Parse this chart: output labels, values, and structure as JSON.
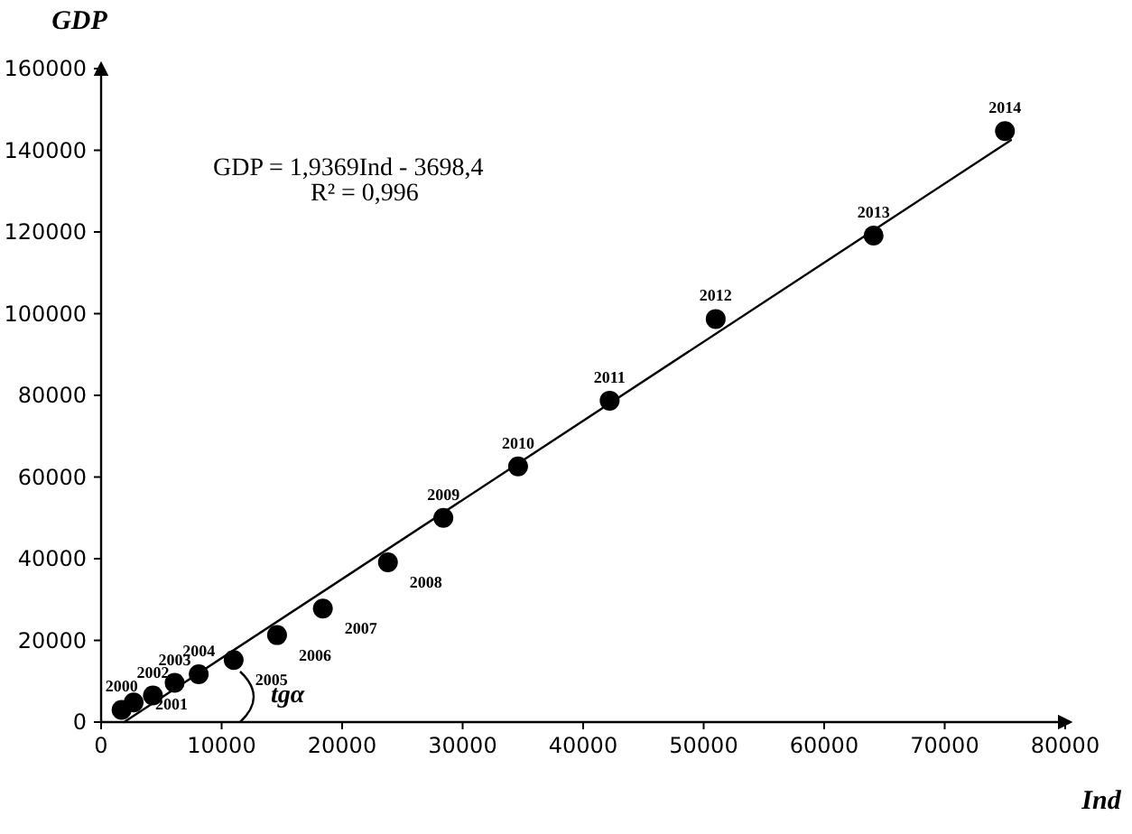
{
  "chart_data": {
    "type": "scatter",
    "xlabel": "Ind",
    "ylabel": "GDP",
    "xlim": [
      0,
      80000
    ],
    "ylim": [
      0,
      160000
    ],
    "xticks": [
      0,
      10000,
      20000,
      30000,
      40000,
      50000,
      60000,
      70000,
      80000
    ],
    "yticks": [
      0,
      20000,
      40000,
      60000,
      80000,
      100000,
      120000,
      140000,
      160000
    ],
    "grid": false,
    "series": [
      {
        "marker": "circle",
        "color": "#000000",
        "x": [
          1700,
          2700,
          4300,
          6100,
          8100,
          11000,
          14600,
          18400,
          23800,
          28400,
          34600,
          42200,
          51000,
          64100,
          75000
        ],
        "values": [
          3000,
          4800,
          6500,
          9600,
          11700,
          15200,
          21300,
          27800,
          39100,
          50000,
          62600,
          78700,
          98700,
          119100,
          144700
        ]
      },
      {
        "type": "line",
        "color": "#000000",
        "x": [
          1910,
          75500
        ],
        "values": [
          0,
          142500
        ]
      }
    ],
    "annotations": [
      "GDP = 1,9369Ind - 3698,4",
      "R² = 0,996",
      "tgα",
      {
        "text": "2000",
        "x": 1700,
        "y": 3000
      },
      {
        "text": "2001",
        "x": 2700,
        "y": 4800
      },
      {
        "text": "2002",
        "x": 4300,
        "y": 6500
      },
      {
        "text": "2003",
        "x": 6100,
        "y": 9600
      },
      {
        "text": "2004",
        "x": 8100,
        "y": 11700
      },
      {
        "text": "2005",
        "x": 11000,
        "y": 15200
      },
      {
        "text": "2006",
        "x": 14600,
        "y": 21300
      },
      {
        "text": "2007",
        "x": 18400,
        "y": 27800
      },
      {
        "text": "2008",
        "x": 23800,
        "y": 39100
      },
      {
        "text": "2009",
        "x": 28400,
        "y": 50000
      },
      {
        "text": "2010",
        "x": 34600,
        "y": 62600
      },
      {
        "text": "2011",
        "x": 42200,
        "y": 78700
      },
      {
        "text": "2012",
        "x": 51000,
        "y": 98700
      },
      {
        "text": "2013",
        "x": 64100,
        "y": 119100
      },
      {
        "text": "2014",
        "x": 75000,
        "y": 144700
      }
    ]
  }
}
